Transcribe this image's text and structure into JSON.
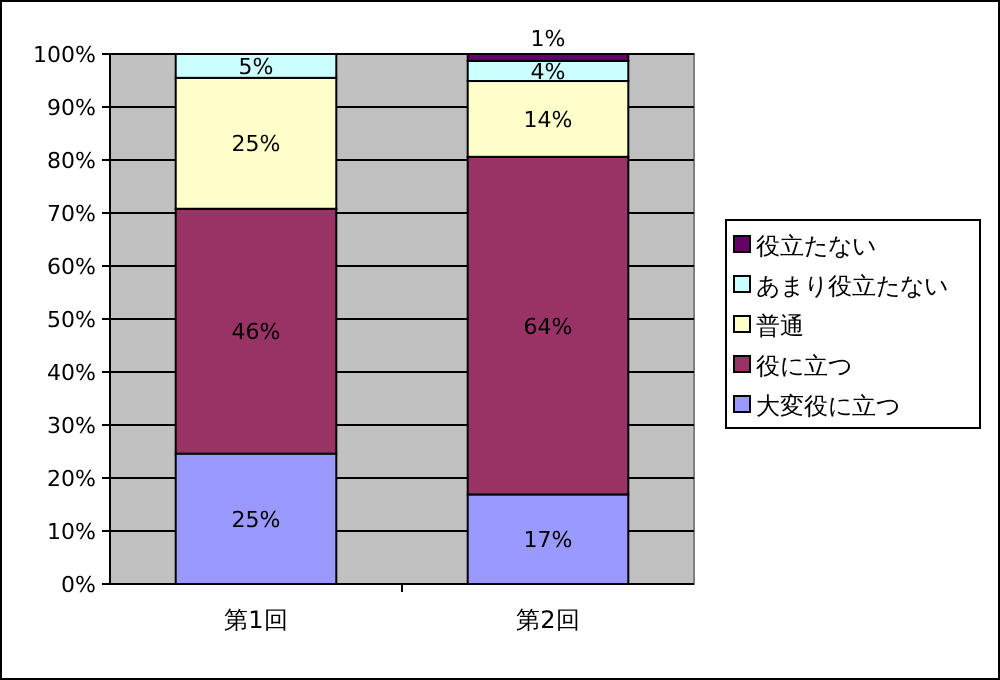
{
  "chart_data": {
    "type": "bar",
    "stacked": true,
    "categories": [
      "第1回",
      "第2回"
    ],
    "series": [
      {
        "name": "大変役に立つ",
        "color": "#9999ff",
        "values": [
          24.6,
          16.9
        ],
        "value_labels": [
          "25%",
          "17%"
        ]
      },
      {
        "name": "役に立つ",
        "color": "#993366",
        "values": [
          46.2,
          63.7
        ],
        "value_labels": [
          "46%",
          "64%"
        ]
      },
      {
        "name": "普通",
        "color": "#ffffcc",
        "values": [
          24.7,
          14.3
        ],
        "value_labels": [
          "25%",
          "14%"
        ]
      },
      {
        "name": "あまり役立たない",
        "color": "#ccffff",
        "values": [
          4.5,
          3.8
        ],
        "value_labels": [
          "5%",
          "4%"
        ]
      },
      {
        "name": "役立たない",
        "color": "#660066",
        "values": [
          0,
          1.3
        ],
        "value_labels": [
          null,
          "1%"
        ]
      }
    ],
    "ylim": [
      0,
      100
    ],
    "yticks": [
      {
        "value": 0,
        "label": "0%"
      },
      {
        "value": 10,
        "label": "10%"
      },
      {
        "value": 20,
        "label": "20%"
      },
      {
        "value": 30,
        "label": "30%"
      },
      {
        "value": 40,
        "label": "40%"
      },
      {
        "value": 50,
        "label": "50%"
      },
      {
        "value": 60,
        "label": "60%"
      },
      {
        "value": 70,
        "label": "70%"
      },
      {
        "value": 80,
        "label": "80%"
      },
      {
        "value": 90,
        "label": "90%"
      },
      {
        "value": 100,
        "label": "100%"
      }
    ],
    "grid": "y",
    "legend": "right"
  }
}
